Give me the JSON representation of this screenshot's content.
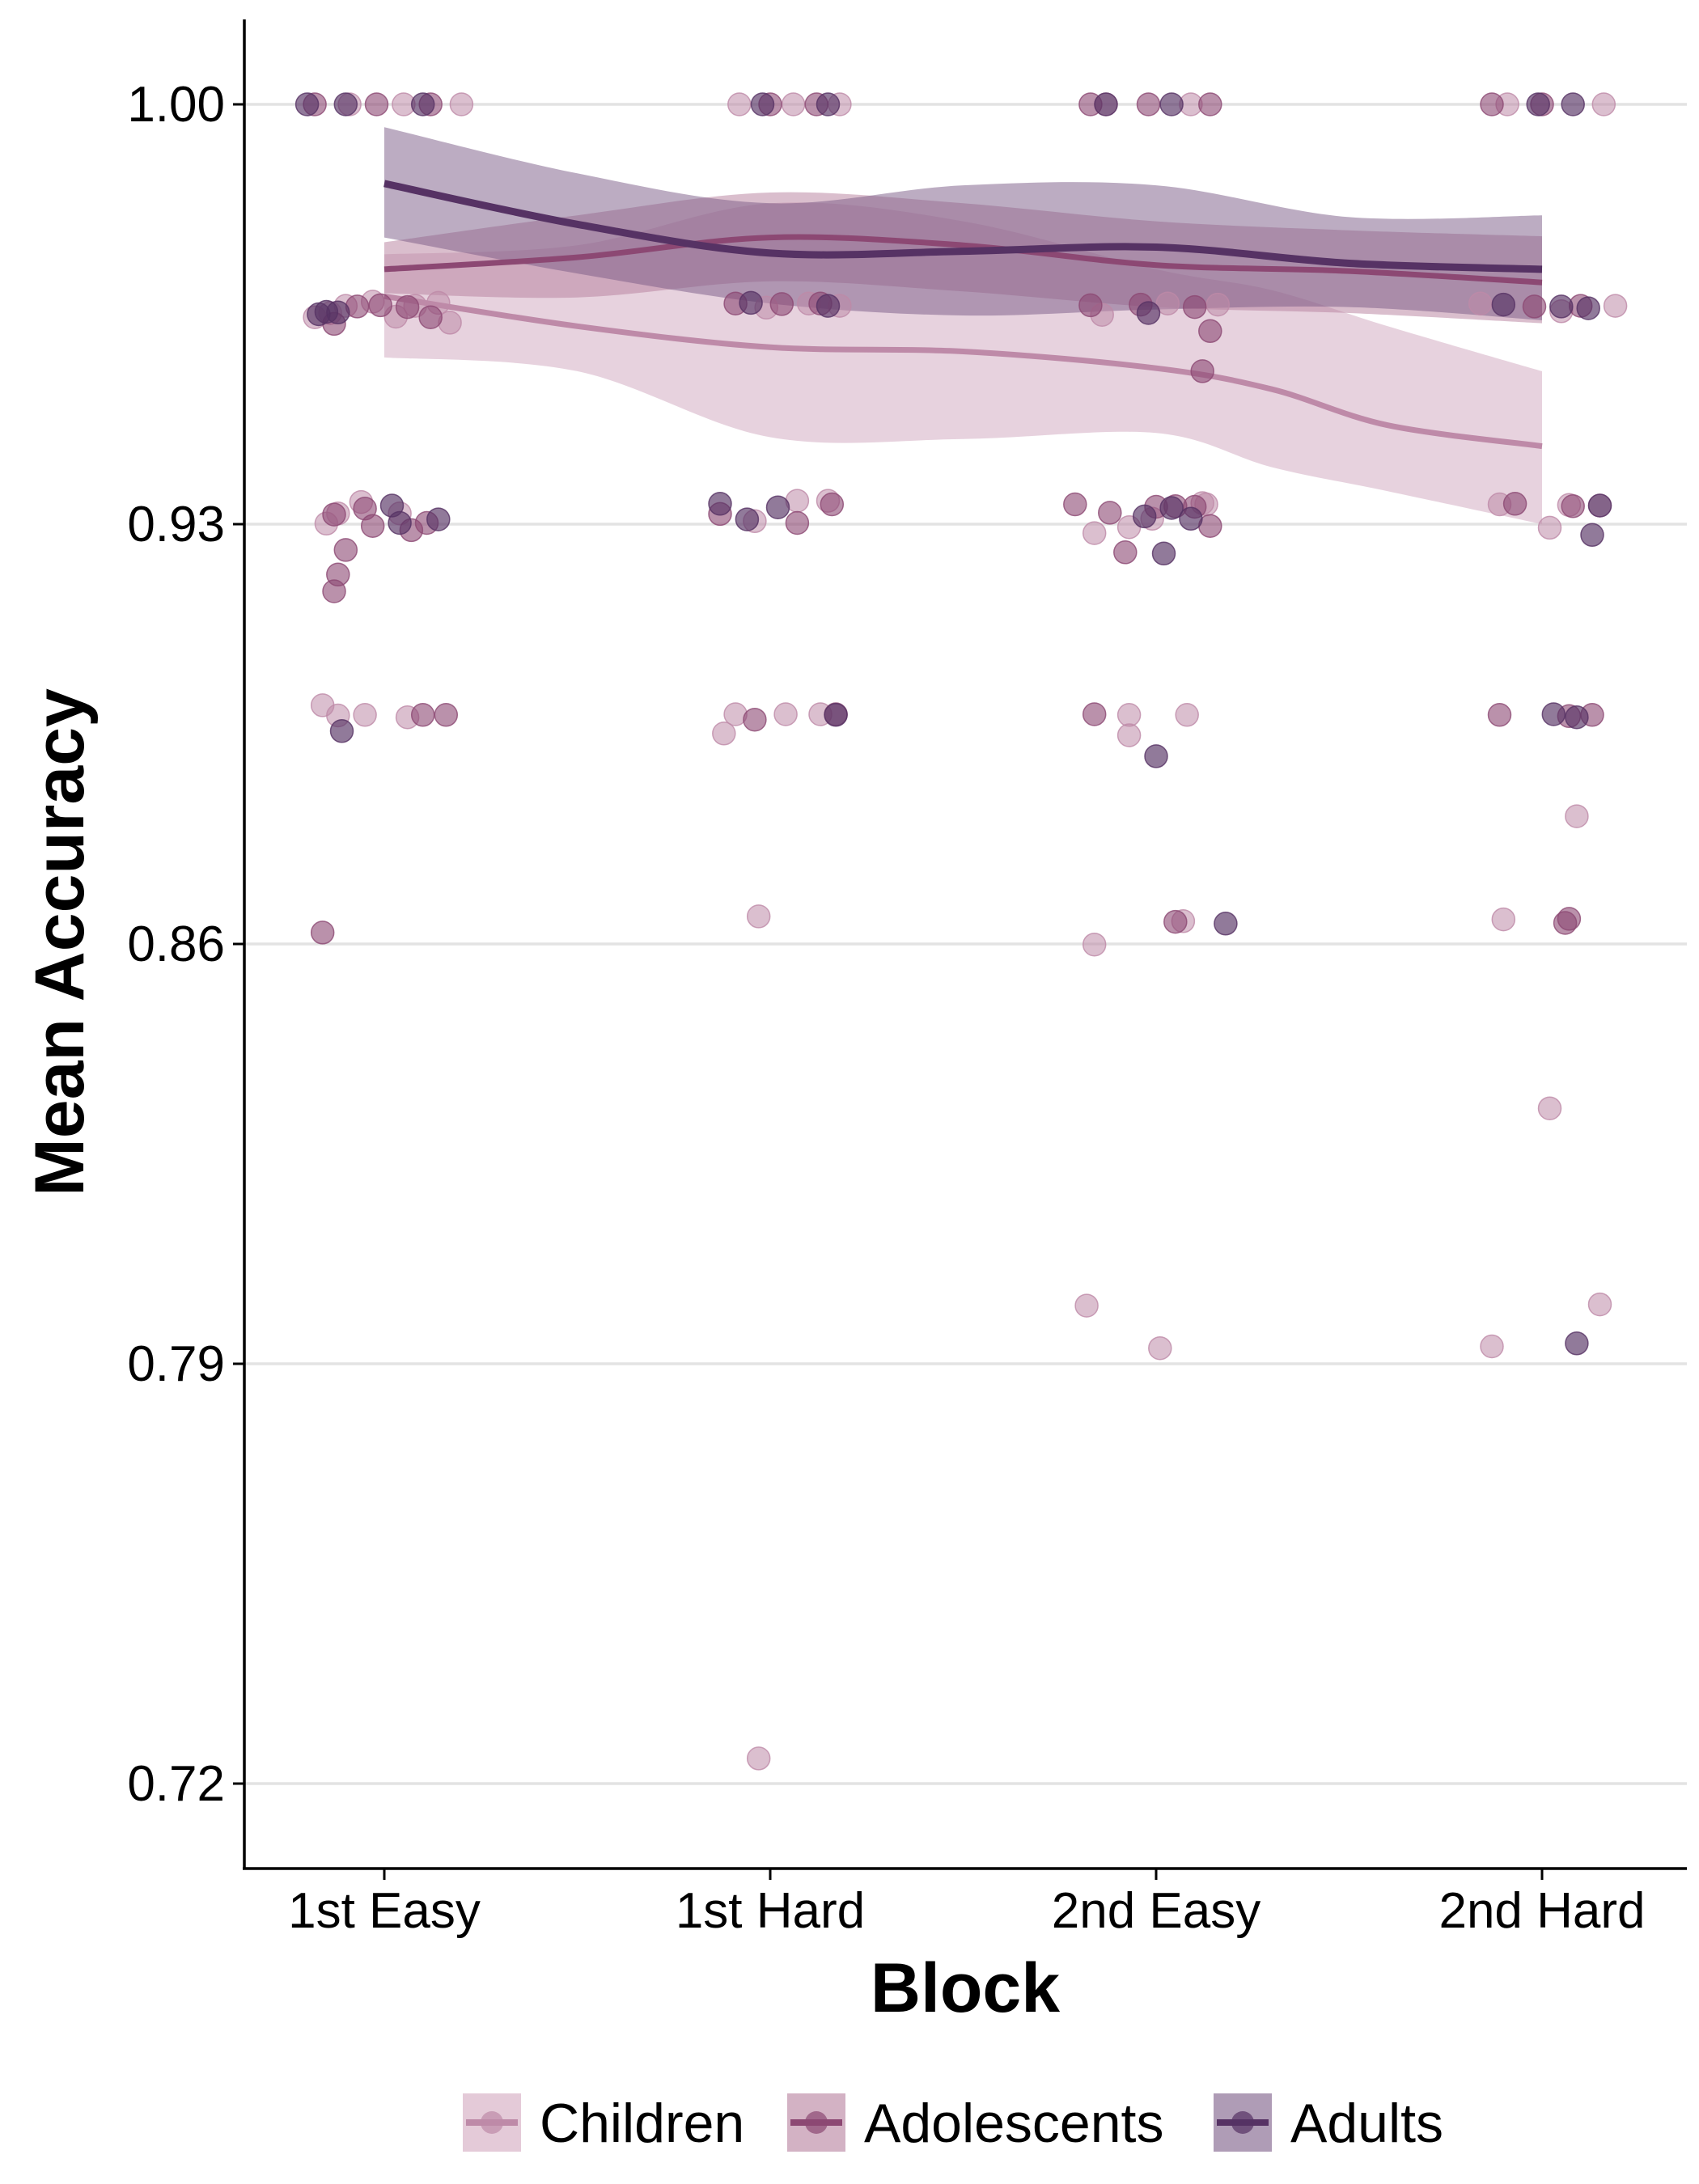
{
  "chart_data": {
    "type": "scatter",
    "xlabel": "Block",
    "ylabel": "Mean Accuracy",
    "categories": [
      "1st Easy",
      "1st Hard",
      "2nd Easy",
      "2nd Hard"
    ],
    "y_ticks": [
      1.0,
      0.93,
      0.86,
      0.79,
      0.72
    ],
    "y_tick_labels": [
      "1.00",
      "0.93",
      "0.86",
      "0.79",
      "0.72"
    ],
    "ylim": [
      0.706,
      1.014
    ],
    "grid": "horizontal major gridlines",
    "legend": "bottom",
    "series": [
      {
        "name": "Children",
        "color": "#be8aa8",
        "fill_opacity": 0.4,
        "smooth": [
          {
            "x": 0,
            "y": 0.968
          },
          {
            "x": 0.5,
            "y": 0.963
          },
          {
            "x": 1,
            "y": 0.9595
          },
          {
            "x": 1.5,
            "y": 0.9588
          },
          {
            "x": 2,
            "y": 0.956
          },
          {
            "x": 2.3,
            "y": 0.9525
          },
          {
            "x": 2.6,
            "y": 0.9465
          },
          {
            "x": 3,
            "y": 0.943
          }
        ],
        "ci_upper": [
          0.975,
          0.9765,
          0.9835,
          0.9805,
          0.9725,
          0.969,
          0.963,
          0.9555
        ],
        "ci_lower": [
          0.9578,
          0.9555,
          0.9445,
          0.9442,
          0.9452,
          0.9395,
          0.9355,
          0.93
        ],
        "points": [
          {
            "x": -0.18,
            "y": 0.9645
          },
          {
            "x": -0.14,
            "y": 0.9652
          },
          {
            "x": -0.12,
            "y": 0.9318
          },
          {
            "x": -0.15,
            "y": 0.9301
          },
          {
            "x": -0.16,
            "y": 0.8998
          },
          {
            "x": -0.12,
            "y": 0.8981
          },
          {
            "x": -0.06,
            "y": 0.9337
          },
          {
            "x": -0.05,
            "y": 0.8982
          },
          {
            "x": 0.04,
            "y": 0.9318
          },
          {
            "x": 0.06,
            "y": 0.8978
          },
          {
            "x": -0.1,
            "y": 0.9664
          },
          {
            "x": -0.03,
            "y": 0.9671
          },
          {
            "x": 0.03,
            "y": 0.9646
          },
          {
            "x": 0.08,
            "y": 0.9664
          },
          {
            "x": 0.14,
            "y": 0.9669
          },
          {
            "x": 0.17,
            "y": 0.9636
          },
          {
            "x": -0.09,
            "y": 1.0
          },
          {
            "x": 0.05,
            "y": 1.0
          },
          {
            "x": 0.2,
            "y": 1.0
          },
          {
            "x": 0.88,
            "y": 0.8951
          },
          {
            "x": 0.91,
            "y": 0.8983
          },
          {
            "x": 0.97,
            "y": 0.8646
          },
          {
            "x": 1.04,
            "y": 0.8983
          },
          {
            "x": 1.13,
            "y": 0.8983
          },
          {
            "x": 0.96,
            "y": 0.9305
          },
          {
            "x": 1.07,
            "y": 0.9339
          },
          {
            "x": 1.15,
            "y": 0.9339
          },
          {
            "x": 0.99,
            "y": 0.9661
          },
          {
            "x": 1.1,
            "y": 0.9668
          },
          {
            "x": 1.18,
            "y": 0.9664
          },
          {
            "x": 0.97,
            "y": 0.7242
          },
          {
            "x": 0.92,
            "y": 1.0
          },
          {
            "x": 1.06,
            "y": 1.0
          },
          {
            "x": 1.18,
            "y": 1.0
          },
          {
            "x": 1.82,
            "y": 0.7997
          },
          {
            "x": 1.84,
            "y": 0.8599
          },
          {
            "x": 1.84,
            "y": 0.9285
          },
          {
            "x": 1.93,
            "y": 0.9295
          },
          {
            "x": 1.99,
            "y": 0.9309
          },
          {
            "x": 1.93,
            "y": 0.8982
          },
          {
            "x": 1.93,
            "y": 0.8948
          },
          {
            "x": 2.08,
            "y": 0.8982
          },
          {
            "x": 2.01,
            "y": 0.7926
          },
          {
            "x": 2.07,
            "y": 0.8638
          },
          {
            "x": 2.13,
            "y": 0.9333
          },
          {
            "x": 2.12,
            "y": 0.9335
          },
          {
            "x": 2.16,
            "y": 0.9666
          },
          {
            "x": 1.86,
            "y": 0.9649
          },
          {
            "x": 2.03,
            "y": 0.9668
          },
          {
            "x": 1.87,
            "y": 1.0
          },
          {
            "x": 2.09,
            "y": 1.0
          },
          {
            "x": 2.89,
            "y": 0.9333
          },
          {
            "x": 2.9,
            "y": 0.8641
          },
          {
            "x": 2.87,
            "y": 0.7929
          },
          {
            "x": 3.02,
            "y": 0.9294
          },
          {
            "x": 3.02,
            "y": 0.8326
          },
          {
            "x": 3.09,
            "y": 0.8813
          },
          {
            "x": 3.15,
            "y": 0.7999
          },
          {
            "x": 3.15,
            "y": 0.9331
          },
          {
            "x": 3.07,
            "y": 0.9332
          },
          {
            "x": 2.84,
            "y": 0.9668
          },
          {
            "x": 3.19,
            "y": 0.9664
          },
          {
            "x": 3.05,
            "y": 0.9655
          },
          {
            "x": 3.16,
            "y": 1.0
          },
          {
            "x": 2.91,
            "y": 1.0
          }
        ]
      },
      {
        "name": "Adolescents",
        "color": "#8c4873",
        "fill_opacity": 0.4,
        "smooth": [
          {
            "x": 0,
            "y": 0.9725
          },
          {
            "x": 0.5,
            "y": 0.9745
          },
          {
            "x": 1,
            "y": 0.9778
          },
          {
            "x": 1.5,
            "y": 0.9765
          },
          {
            "x": 2,
            "y": 0.9732
          },
          {
            "x": 2.5,
            "y": 0.9722
          },
          {
            "x": 3,
            "y": 0.9703
          }
        ],
        "ci_upper": [
          0.977,
          0.9815,
          0.9853,
          0.9835,
          0.9805,
          0.979,
          0.978
        ],
        "ci_lower": [
          0.9685,
          0.9678,
          0.9705,
          0.9688,
          0.9662,
          0.9652,
          0.9635
        ],
        "points": [
          {
            "x": -0.16,
            "y": 0.8619
          },
          {
            "x": -0.13,
            "y": 0.9316
          },
          {
            "x": -0.13,
            "y": 0.9188
          },
          {
            "x": -0.12,
            "y": 0.9216
          },
          {
            "x": -0.1,
            "y": 0.9257
          },
          {
            "x": -0.03,
            "y": 0.9297
          },
          {
            "x": 0.07,
            "y": 0.929
          },
          {
            "x": 0.11,
            "y": 0.9302
          },
          {
            "x": 0.1,
            "y": 0.8982
          },
          {
            "x": 0.16,
            "y": 0.8982
          },
          {
            "x": -0.05,
            "y": 0.9326
          },
          {
            "x": -0.13,
            "y": 0.9634
          },
          {
            "x": -0.07,
            "y": 0.9663
          },
          {
            "x": -0.01,
            "y": 0.9665
          },
          {
            "x": 0.06,
            "y": 0.9662
          },
          {
            "x": 0.12,
            "y": 0.9645
          },
          {
            "x": -0.18,
            "y": 1.0
          },
          {
            "x": -0.02,
            "y": 1.0
          },
          {
            "x": 0.12,
            "y": 1.0
          },
          {
            "x": 0.87,
            "y": 0.9317
          },
          {
            "x": 0.96,
            "y": 0.8974
          },
          {
            "x": 0.91,
            "y": 0.9668
          },
          {
            "x": 1.03,
            "y": 0.9667
          },
          {
            "x": 1.16,
            "y": 0.9333
          },
          {
            "x": 1.17,
            "y": 0.8983
          },
          {
            "x": 1.07,
            "y": 0.9302
          },
          {
            "x": 1.13,
            "y": 0.9668
          },
          {
            "x": 1.0,
            "y": 1.0
          },
          {
            "x": 1.12,
            "y": 1.0
          },
          {
            "x": 1.79,
            "y": 0.9333
          },
          {
            "x": 1.84,
            "y": 0.8983
          },
          {
            "x": 1.88,
            "y": 0.9319
          },
          {
            "x": 1.92,
            "y": 0.9253
          },
          {
            "x": 2.0,
            "y": 0.9329
          },
          {
            "x": 2.05,
            "y": 0.933
          },
          {
            "x": 2.1,
            "y": 0.9329
          },
          {
            "x": 2.14,
            "y": 0.9297
          },
          {
            "x": 2.05,
            "y": 0.8637
          },
          {
            "x": 2.12,
            "y": 0.9555
          },
          {
            "x": 2.14,
            "y": 0.9622
          },
          {
            "x": 1.83,
            "y": 0.9665
          },
          {
            "x": 1.96,
            "y": 0.9666
          },
          {
            "x": 2.1,
            "y": 0.9662
          },
          {
            "x": 1.83,
            "y": 1.0
          },
          {
            "x": 1.98,
            "y": 1.0
          },
          {
            "x": 2.14,
            "y": 1.0
          },
          {
            "x": 2.89,
            "y": 0.8982
          },
          {
            "x": 2.93,
            "y": 0.9334
          },
          {
            "x": 3.08,
            "y": 0.933
          },
          {
            "x": 3.07,
            "y": 0.898
          },
          {
            "x": 3.13,
            "y": 0.8982
          },
          {
            "x": 3.07,
            "y": 0.8642
          },
          {
            "x": 3.06,
            "y": 0.8635
          },
          {
            "x": 2.98,
            "y": 0.9663
          },
          {
            "x": 3.1,
            "y": 0.9664
          },
          {
            "x": 2.87,
            "y": 1.0
          },
          {
            "x": 3.0,
            "y": 1.0
          }
        ]
      },
      {
        "name": "Adults",
        "color": "#563264",
        "fill_opacity": 0.4,
        "smooth": [
          {
            "x": 0,
            "y": 0.9868
          },
          {
            "x": 0.5,
            "y": 0.98
          },
          {
            "x": 1,
            "y": 0.9752
          },
          {
            "x": 1.5,
            "y": 0.9755
          },
          {
            "x": 2,
            "y": 0.9762
          },
          {
            "x": 2.5,
            "y": 0.9735
          },
          {
            "x": 3,
            "y": 0.9725
          }
        ],
        "ci_upper": [
          0.9962,
          0.9885,
          0.9835,
          0.9865,
          0.9865,
          0.9812,
          0.9815
        ],
        "ci_lower": [
          0.9778,
          0.9718,
          0.9668,
          0.9648,
          0.9658,
          0.9662,
          0.964
        ],
        "points": [
          {
            "x": -0.17,
            "y": 0.965
          },
          {
            "x": -0.15,
            "y": 0.9654
          },
          {
            "x": -0.12,
            "y": 0.9653
          },
          {
            "x": -0.11,
            "y": 0.8955
          },
          {
            "x": 0.02,
            "y": 0.9331
          },
          {
            "x": 0.04,
            "y": 0.9302
          },
          {
            "x": 0.14,
            "y": 0.9308
          },
          {
            "x": -0.2,
            "y": 1.0
          },
          {
            "x": -0.1,
            "y": 1.0
          },
          {
            "x": 0.1,
            "y": 1.0
          },
          {
            "x": 0.87,
            "y": 0.9334
          },
          {
            "x": 0.94,
            "y": 0.9308
          },
          {
            "x": 1.02,
            "y": 0.9328
          },
          {
            "x": 1.17,
            "y": 0.8982
          },
          {
            "x": 0.95,
            "y": 0.9669
          },
          {
            "x": 1.15,
            "y": 0.9664
          },
          {
            "x": 0.98,
            "y": 1.0
          },
          {
            "x": 1.15,
            "y": 1.0
          },
          {
            "x": 1.97,
            "y": 0.9313
          },
          {
            "x": 2.04,
            "y": 0.9327
          },
          {
            "x": 2.09,
            "y": 0.9309
          },
          {
            "x": 2.02,
            "y": 0.9251
          },
          {
            "x": 2.0,
            "y": 0.8913
          },
          {
            "x": 2.18,
            "y": 0.8634
          },
          {
            "x": 1.98,
            "y": 0.9652
          },
          {
            "x": 1.87,
            "y": 1.0
          },
          {
            "x": 2.04,
            "y": 1.0
          },
          {
            "x": 2.9,
            "y": 0.9666
          },
          {
            "x": 3.03,
            "y": 0.8983
          },
          {
            "x": 3.09,
            "y": 0.8978
          },
          {
            "x": 3.09,
            "y": 0.7934
          },
          {
            "x": 3.15,
            "y": 0.9331
          },
          {
            "x": 3.13,
            "y": 0.9282
          },
          {
            "x": 3.05,
            "y": 0.9663
          },
          {
            "x": 3.12,
            "y": 0.966
          },
          {
            "x": 2.99,
            "y": 1.0
          },
          {
            "x": 3.08,
            "y": 1.0
          }
        ]
      }
    ]
  }
}
